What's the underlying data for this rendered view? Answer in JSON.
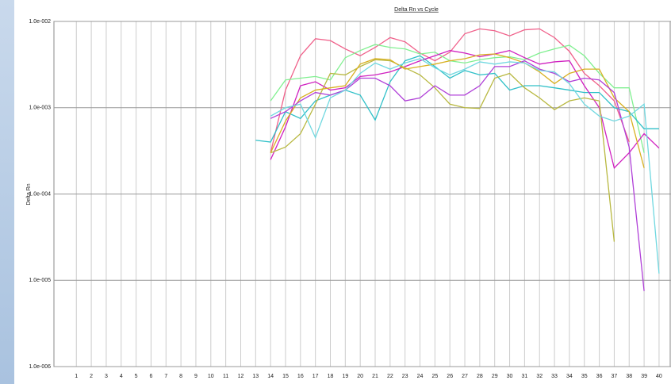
{
  "chart_data": {
    "type": "line",
    "title": "Delta Rn vs Cycle",
    "ylabel": "Delta Rn",
    "log_y": true,
    "grid": true,
    "x": [
      1,
      2,
      3,
      4,
      5,
      6,
      7,
      8,
      9,
      10,
      11,
      12,
      13,
      14,
      15,
      16,
      17,
      18,
      19,
      20,
      21,
      22,
      23,
      24,
      25,
      26,
      27,
      28,
      29,
      30,
      31,
      32,
      33,
      34,
      35,
      36,
      37,
      38,
      39,
      40
    ],
    "xlim": [
      -0.5,
      40.8
    ],
    "xticks": [
      1,
      2,
      3,
      4,
      5,
      6,
      7,
      8,
      9,
      10,
      11,
      12,
      13,
      14,
      15,
      16,
      17,
      18,
      19,
      20,
      21,
      22,
      23,
      24,
      25,
      26,
      27,
      28,
      29,
      30,
      31,
      32,
      33,
      34,
      35,
      36,
      37,
      38,
      39,
      40
    ],
    "ylim": [
      1e-06,
      0.01
    ],
    "yticks": [
      {
        "value": 1e-06,
        "label": "1.0e-006"
      },
      {
        "value": 1e-05,
        "label": "1.0e-005"
      },
      {
        "value": 0.0001,
        "label": "1.0e-004"
      },
      {
        "value": 0.001,
        "label": "1.0e-003"
      },
      {
        "value": 0.01,
        "label": "1.0e-002"
      }
    ],
    "series": [
      {
        "color": "#f0608a",
        "values": [
          null,
          null,
          null,
          null,
          null,
          null,
          null,
          null,
          null,
          null,
          null,
          null,
          null,
          0.0003,
          0.0016,
          0.004,
          0.0063,
          0.006,
          0.0048,
          0.004,
          0.005,
          0.0065,
          0.0058,
          0.0043,
          0.0035,
          0.0044,
          0.0072,
          0.0082,
          0.0078,
          0.0068,
          0.008,
          0.0082,
          0.0065,
          0.0045,
          0.0025,
          0.0018,
          0.0012,
          0.0004,
          null,
          null
        ]
      },
      {
        "color": "#80f090",
        "values": [
          null,
          null,
          null,
          null,
          null,
          null,
          null,
          null,
          null,
          null,
          null,
          null,
          null,
          0.0012,
          0.0021,
          0.0022,
          0.0023,
          0.0021,
          0.0038,
          0.0046,
          0.0054,
          0.005,
          0.0048,
          0.0042,
          0.0044,
          0.0035,
          0.0033,
          0.0036,
          0.0038,
          0.0039,
          0.0036,
          0.0043,
          0.0048,
          0.0053,
          0.004,
          0.0025,
          0.0017,
          0.0017,
          0.0003,
          null
        ]
      },
      {
        "color": "#30c0c8",
        "values": [
          null,
          null,
          null,
          null,
          null,
          null,
          null,
          null,
          null,
          null,
          null,
          null,
          0.00042,
          0.0004,
          0.0009,
          0.00075,
          0.0012,
          0.0014,
          0.0016,
          0.0014,
          0.00072,
          0.002,
          0.0035,
          0.004,
          0.003,
          0.0022,
          0.0027,
          0.0024,
          0.0025,
          0.0016,
          0.0018,
          0.0018,
          0.0017,
          0.0016,
          0.0015,
          0.0015,
          0.001,
          0.0009,
          0.00057,
          0.00057
        ]
      },
      {
        "color": "#d020c0",
        "values": [
          null,
          null,
          null,
          null,
          null,
          null,
          null,
          null,
          null,
          null,
          null,
          null,
          null,
          0.00025,
          0.0006,
          0.0018,
          0.002,
          0.0016,
          0.0017,
          0.0023,
          0.0024,
          0.0026,
          0.003,
          0.0035,
          0.004,
          0.0046,
          0.0043,
          0.0039,
          0.0042,
          0.0046,
          0.0038,
          0.0032,
          0.0034,
          0.0035,
          0.0018,
          0.001,
          0.0002,
          0.0003,
          0.0005,
          0.00034
        ]
      },
      {
        "color": "#b8b840",
        "values": [
          null,
          null,
          null,
          null,
          null,
          null,
          null,
          null,
          null,
          null,
          null,
          null,
          null,
          0.0003,
          0.00035,
          0.0005,
          0.0011,
          0.0025,
          0.0024,
          0.003,
          0.0036,
          0.0035,
          0.0029,
          0.0024,
          0.0017,
          0.0011,
          0.001,
          0.00098,
          0.0022,
          0.0025,
          0.0017,
          0.0013,
          0.00095,
          0.0012,
          0.0013,
          0.0012,
          2.8e-05,
          null,
          null,
          null
        ]
      },
      {
        "color": "#d8b020",
        "values": [
          null,
          null,
          null,
          null,
          null,
          null,
          null,
          null,
          null,
          null,
          null,
          null,
          null,
          0.0003,
          0.0007,
          0.0013,
          0.0016,
          0.0017,
          0.0018,
          0.0032,
          0.0037,
          0.0036,
          0.0028,
          0.003,
          0.0032,
          0.0035,
          0.0037,
          0.0041,
          0.0042,
          0.0038,
          0.0033,
          0.0026,
          0.0019,
          0.0025,
          0.0028,
          0.0028,
          0.0013,
          0.0009,
          0.0002,
          null
        ]
      },
      {
        "color": "#b040d8",
        "values": [
          null,
          null,
          null,
          null,
          null,
          null,
          null,
          null,
          null,
          null,
          null,
          null,
          null,
          0.00075,
          0.0009,
          0.0012,
          0.0015,
          0.0014,
          0.0016,
          0.0022,
          0.0022,
          0.0018,
          0.0012,
          0.0013,
          0.0018,
          0.0014,
          0.0014,
          0.0018,
          0.003,
          0.003,
          0.0035,
          0.0028,
          0.0025,
          0.002,
          0.0022,
          0.0021,
          0.0015,
          0.00035,
          7.5e-06,
          null
        ]
      },
      {
        "color": "#70d8e0",
        "values": [
          null,
          null,
          null,
          null,
          null,
          null,
          null,
          null,
          null,
          null,
          null,
          null,
          null,
          0.0008,
          0.001,
          0.0011,
          0.00045,
          0.0013,
          0.0016,
          0.0025,
          0.0033,
          0.0028,
          0.0033,
          0.0037,
          0.0029,
          0.0024,
          0.0028,
          0.0034,
          0.0032,
          0.0034,
          0.0033,
          0.0027,
          0.0026,
          0.0019,
          0.0011,
          0.0008,
          0.0007,
          0.0008,
          0.0011,
          1.2e-05
        ]
      }
    ]
  }
}
